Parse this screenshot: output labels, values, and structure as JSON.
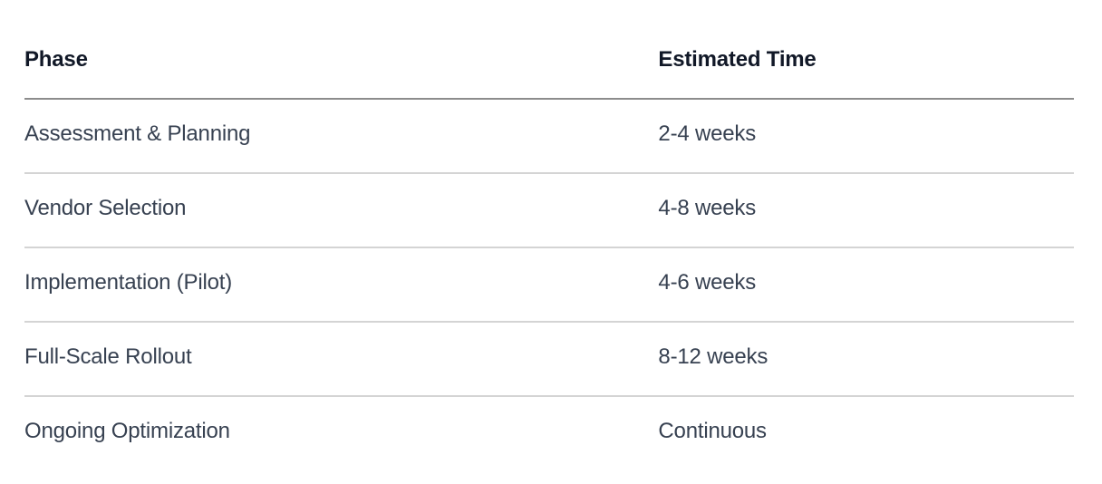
{
  "table": {
    "columns": [
      {
        "label": "Phase"
      },
      {
        "label": "Estimated Time"
      }
    ],
    "rows": [
      {
        "phase": "Assessment & Planning",
        "time": "2-4 weeks"
      },
      {
        "phase": "Vendor Selection",
        "time": "4-8 weeks"
      },
      {
        "phase": "Implementation (Pilot)",
        "time": "4-6 weeks"
      },
      {
        "phase": "Full-Scale Rollout",
        "time": "8-12 weeks"
      },
      {
        "phase": "Ongoing Optimization",
        "time": "Continuous"
      }
    ],
    "colors": {
      "background": "#ffffff",
      "header_text": "#111827",
      "body_text": "#374151",
      "header_border": "#8c8c8c",
      "row_border": "#d4d4d4"
    }
  }
}
